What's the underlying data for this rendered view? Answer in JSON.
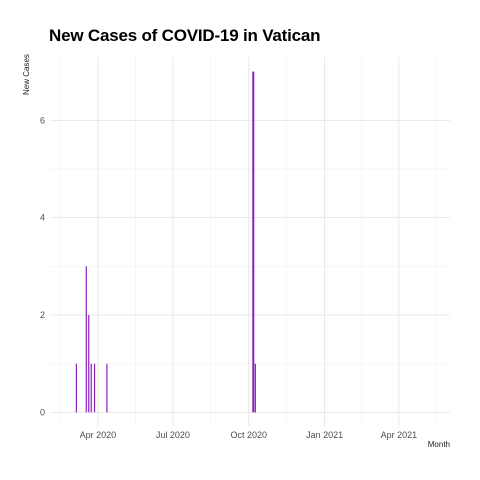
{
  "chart_data": {
    "type": "bar",
    "title": "New Cases of COVID-19 in Vatican",
    "xlabel": "Month",
    "ylabel": "New Cases",
    "ylim": [
      -0.3,
      7.3
    ],
    "yticks": [
      0,
      2,
      4,
      6
    ],
    "xlim": [
      "2020-02-03",
      "2021-06-02"
    ],
    "xticks": [
      {
        "label": "Apr 2020",
        "date": "2020-04-01"
      },
      {
        "label": "Jul 2020",
        "date": "2020-07-01"
      },
      {
        "label": "Oct 2020",
        "date": "2020-10-01"
      },
      {
        "label": "Jan 2021",
        "date": "2021-01-01"
      },
      {
        "label": "Apr 2021",
        "date": "2021-04-01"
      }
    ],
    "series": [
      {
        "color": "#8B1FBF",
        "points": [
          {
            "x": "2020-03-06",
            "y": 1
          },
          {
            "x": "2020-03-18",
            "y": 3
          },
          {
            "x": "2020-03-21",
            "y": 2
          },
          {
            "x": "2020-03-24",
            "y": 1
          },
          {
            "x": "2020-03-28",
            "y": 1
          },
          {
            "x": "2020-04-12",
            "y": 1
          },
          {
            "x": "2020-10-06",
            "y": 7
          },
          {
            "x": "2020-10-07",
            "y": 7
          },
          {
            "x": "2020-10-09",
            "y": 1
          }
        ]
      }
    ],
    "grid": true,
    "legend": "none"
  }
}
